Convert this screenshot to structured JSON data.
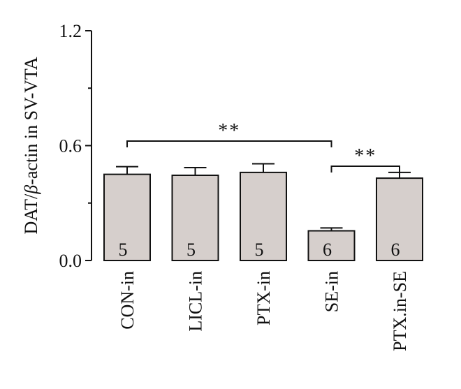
{
  "chart_data": {
    "type": "bar",
    "categories": [
      "CON-in",
      "LICL-in",
      "PTX-in",
      "SE-in",
      "PTX.in-SE"
    ],
    "values": [
      0.45,
      0.445,
      0.46,
      0.155,
      0.43
    ],
    "errors": [
      0.04,
      0.04,
      0.045,
      0.015,
      0.03
    ],
    "n": [
      "5",
      "5",
      "5",
      "6",
      "6"
    ],
    "ylabel_parts": [
      "DAT/",
      "β",
      "-actin in SV-VTA"
    ],
    "ylim": [
      0,
      1.2
    ],
    "yticks": [
      "0.0",
      "0.6",
      "1.2"
    ],
    "significance": [
      {
        "from": 0,
        "to": 3,
        "label": "**"
      },
      {
        "from": 3,
        "to": 4,
        "label": "**"
      }
    ],
    "bar_color": "#d6cfcc",
    "grid": false,
    "legend": "none"
  }
}
